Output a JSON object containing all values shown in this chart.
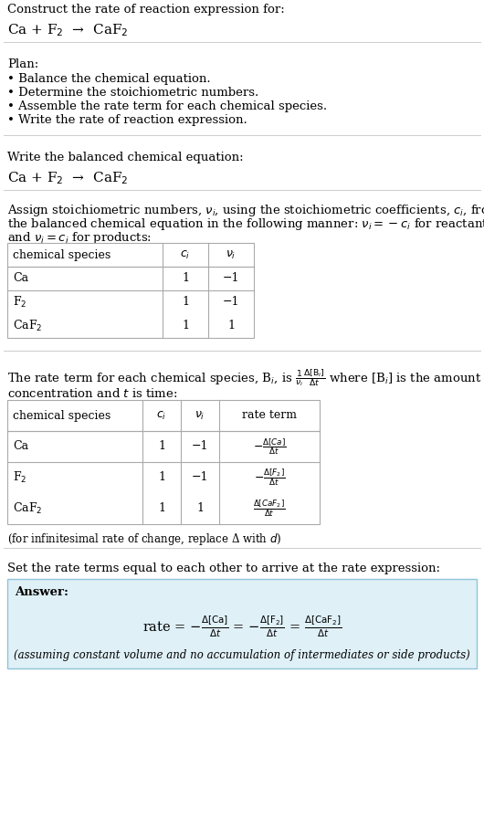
{
  "bg_color": "#ffffff",
  "text_color": "#000000",
  "answer_bg": "#dff0f7",
  "answer_border": "#90c4d8",
  "line_color": "#cccccc",
  "section1_title": "Construct the rate of reaction expression for:",
  "section1_eq": "Ca + F$_2$  →  CaF$_2$",
  "section2_title": "Plan:",
  "section2_bullets": [
    "• Balance the chemical equation.",
    "• Determine the stoichiometric numbers.",
    "• Assemble the rate term for each chemical species.",
    "• Write the rate of reaction expression."
  ],
  "section3_title": "Write the balanced chemical equation:",
  "section3_eq": "Ca + F$_2$  →  CaF$_2$",
  "section4_line1": "Assign stoichiometric numbers, $\\nu_i$, using the stoichiometric coefficients, $c_i$, from",
  "section4_line2": "the balanced chemical equation in the following manner: $\\nu_i = -c_i$ for reactants",
  "section4_line3": "and $\\nu_i = c_i$ for products:",
  "table1_headers": [
    "chemical species",
    "$c_i$",
    "$\\nu_i$"
  ],
  "table1_rows": [
    [
      "Ca",
      "1",
      "−1"
    ],
    [
      "F$_2$",
      "1",
      "−1"
    ],
    [
      "CaF$_2$",
      "1",
      "1"
    ]
  ],
  "section5_line1a": "The rate term for each chemical species, B",
  "section5_line1b": ", is ",
  "section5_line1c": "$\\frac{1}{\\nu_i}\\frac{\\Delta[B_i]}{\\Delta t}$",
  "section5_line1d": " where [B",
  "section5_line1e": "] is the amount",
  "section5_line2": "concentration and $t$ is time:",
  "table2_headers": [
    "chemical species",
    "$c_i$",
    "$\\nu_i$",
    "rate term"
  ],
  "table2_rows": [
    [
      "Ca",
      "1",
      "−1",
      "$-\\frac{\\Delta[Ca]}{\\Delta t}$"
    ],
    [
      "F$_2$",
      "1",
      "−1",
      "$-\\frac{\\Delta[F_2]}{\\Delta t}$"
    ],
    [
      "CaF$_2$",
      "1",
      "1",
      "$\\frac{\\Delta[CaF_2]}{\\Delta t}$"
    ]
  ],
  "infinitesimal_note": "(for infinitesimal rate of change, replace Δ with $d$)",
  "section6_title": "Set the rate terms equal to each other to arrive at the rate expression:",
  "answer_label": "Answer:",
  "answer_note": "(assuming constant volume and no accumulation of intermediates or side products)",
  "font_size": 9.5,
  "font_size_eq": 11,
  "font_size_small": 8.5,
  "font_size_table": 9
}
